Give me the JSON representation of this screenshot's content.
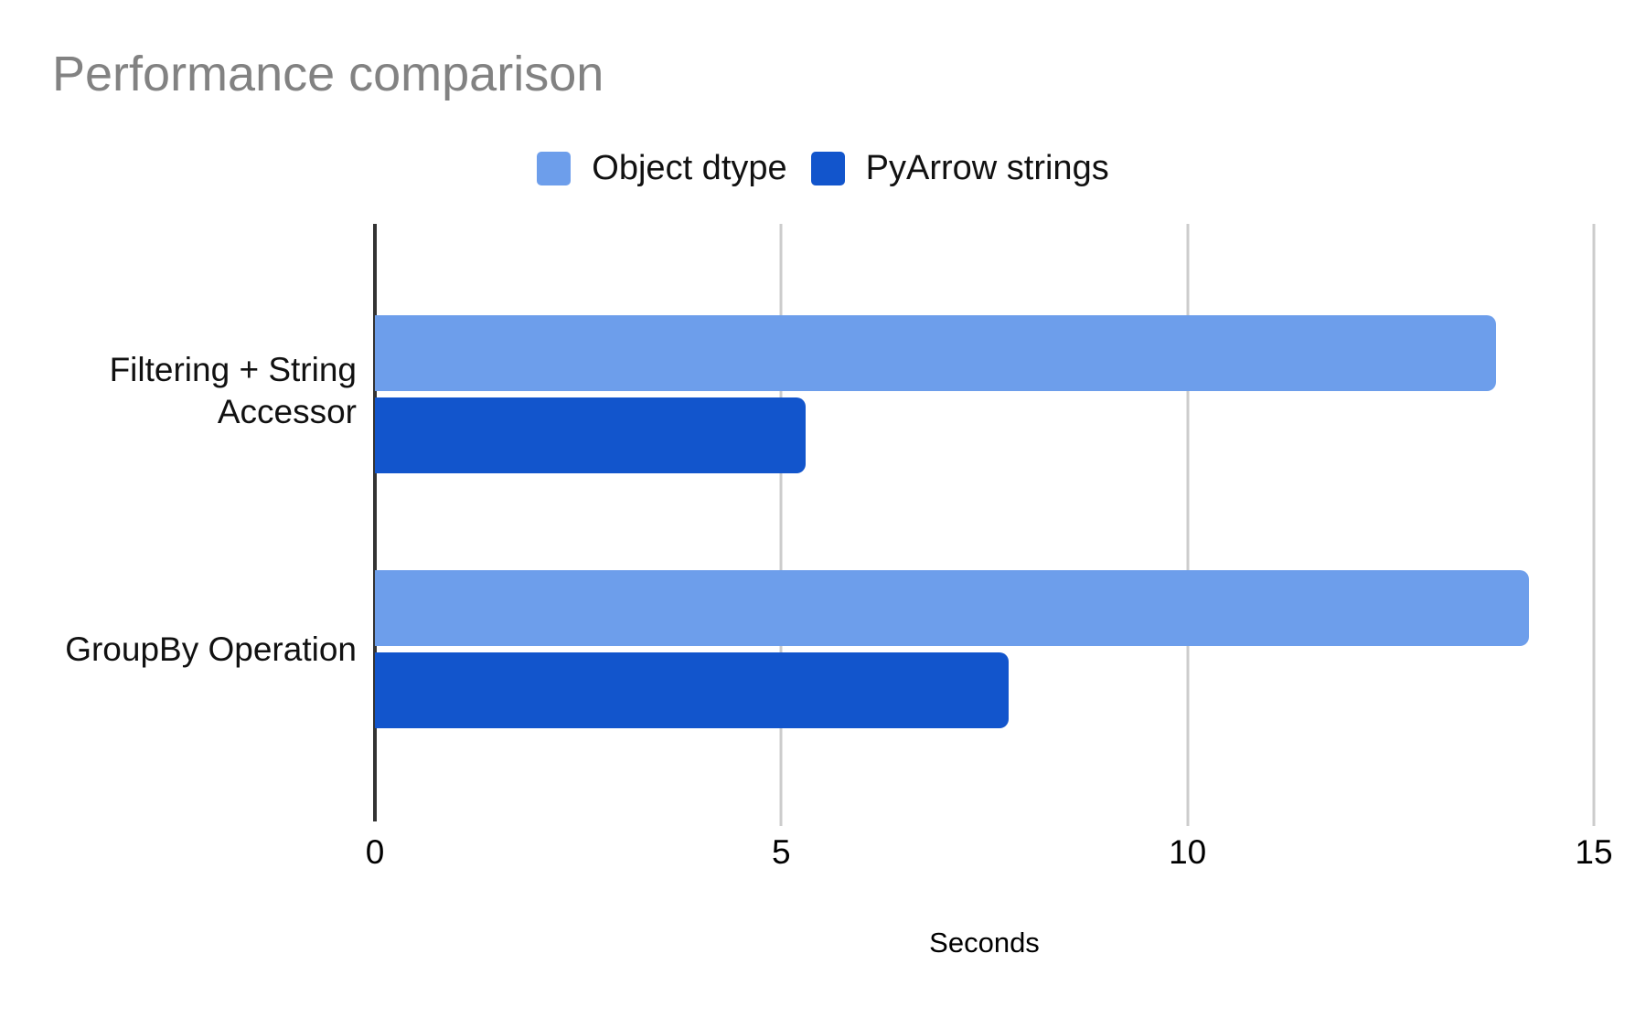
{
  "title": "Performance comparison",
  "chart_data": {
    "type": "bar",
    "orientation": "horizontal",
    "title": "Performance comparison",
    "categories": [
      "Filtering + String Accessor",
      "GroupBy Operation"
    ],
    "series": [
      {
        "name": "Object dtype",
        "color": "#6d9eeb",
        "values": [
          13.8,
          14.2
        ]
      },
      {
        "name": "PyArrow strings",
        "color": "#1255cc",
        "values": [
          5.3,
          7.8
        ]
      }
    ],
    "xlabel": "Seconds",
    "xlim": [
      0,
      15
    ],
    "xticks": [
      0,
      5,
      10,
      15
    ],
    "xtick_labels": [
      "0",
      "5",
      "10",
      "15"
    ],
    "grid": true,
    "legend_position": "top-center",
    "colors": {
      "title_text": "#828282",
      "gridline": "#cccccc",
      "axis_baseline": "#333333",
      "label_text": "#111111"
    }
  }
}
